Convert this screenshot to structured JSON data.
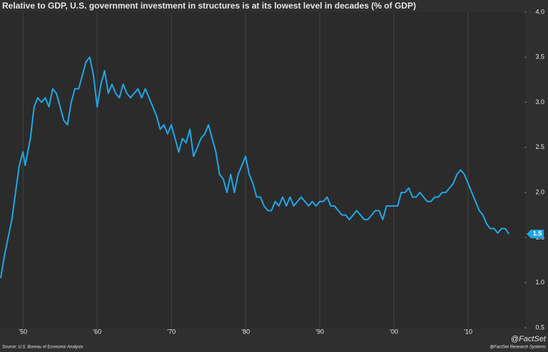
{
  "chart_data": {
    "type": "line",
    "title": "Relative to GDP, U.S. government investment in structures is at its lowest level in decades (% of GDP)",
    "source": "Source: U.S. Bureau of Economic Analysis",
    "credit": "@FactSet Research Systems",
    "logo": "@FactSet",
    "last_value_label": "1.5",
    "grid": "x",
    "xlim": [
      1947,
      2017.6
    ],
    "ylim": [
      0.5,
      4.0
    ],
    "xticks": [
      {
        "value": 1950,
        "label": "’50"
      },
      {
        "value": 1960,
        "label": "’60"
      },
      {
        "value": 1970,
        "label": "’70"
      },
      {
        "value": 1980,
        "label": "’80"
      },
      {
        "value": 1990,
        "label": "’90"
      },
      {
        "value": 2000,
        "label": "’00"
      },
      {
        "value": 2010,
        "label": "’10"
      }
    ],
    "yticks": [
      {
        "value": 4,
        "label": "4.0"
      },
      3.5,
      {
        "value": 3,
        "label": "3.0"
      },
      2.5,
      {
        "value": 2,
        "label": "2.0"
      },
      1.5,
      {
        "value": 1,
        "label": "1.0"
      },
      0.5
    ],
    "series": [
      {
        "color": "#1ea7e8",
        "x": [
          1947.0,
          1947.5,
          1948.0,
          1948.5,
          1949.0,
          1949.5,
          1950.0,
          1950.3,
          1951.0,
          1951.5,
          1952.0,
          1952.5,
          1953.0,
          1953.5,
          1954.0,
          1954.5,
          1955.0,
          1955.5,
          1956.0,
          1956.5,
          1957.0,
          1957.5,
          1958.0,
          1958.5,
          1959.0,
          1959.5,
          1960.0,
          1960.5,
          1961.0,
          1961.5,
          1962.0,
          1962.5,
          1963.0,
          1963.5,
          1964.0,
          1964.5,
          1965.0,
          1965.5,
          1966.0,
          1966.5,
          1967.0,
          1967.5,
          1968.0,
          1968.5,
          1969.0,
          1969.5,
          1970.0,
          1970.5,
          1971.0,
          1971.5,
          1972.0,
          1972.5,
          1973.0,
          1973.5,
          1974.0,
          1974.5,
          1975.0,
          1975.5,
          1976.0,
          1976.5,
          1977.0,
          1977.5,
          1978.0,
          1978.5,
          1979.0,
          1979.5,
          1980.0,
          1980.5,
          1981.0,
          1981.5,
          1982.0,
          1982.5,
          1983.0,
          1983.5,
          1984.0,
          1984.5,
          1985.0,
          1985.5,
          1986.0,
          1986.5,
          1987.0,
          1987.5,
          1988.0,
          1988.5,
          1989.0,
          1989.5,
          1990.0,
          1990.5,
          1991.0,
          1991.5,
          1992.0,
          1992.5,
          1993.0,
          1993.5,
          1994.0,
          1994.5,
          1995.0,
          1995.5,
          1996.0,
          1996.5,
          1997.0,
          1997.5,
          1998.0,
          1998.5,
          1999.0,
          1999.5,
          2000.0,
          2000.5,
          2001.0,
          2001.5,
          2002.0,
          2002.5,
          2003.0,
          2003.5,
          2004.0,
          2004.5,
          2005.0,
          2005.5,
          2006.0,
          2006.5,
          2007.0,
          2007.5,
          2008.0,
          2008.5,
          2009.0,
          2009.5,
          2010.0,
          2010.5,
          2011.0,
          2011.5,
          2012.0,
          2012.5,
          2013.0,
          2013.5,
          2014.0,
          2014.5,
          2015.0,
          2015.5
        ],
        "values": [
          1.05,
          1.3,
          1.5,
          1.7,
          2.0,
          2.3,
          2.45,
          2.3,
          2.6,
          2.95,
          3.05,
          3.0,
          3.05,
          2.95,
          3.15,
          3.1,
          2.95,
          2.8,
          2.75,
          3.0,
          3.15,
          3.15,
          3.3,
          3.45,
          3.5,
          3.3,
          2.95,
          3.2,
          3.35,
          3.1,
          3.2,
          3.1,
          3.05,
          3.2,
          3.1,
          3.05,
          3.1,
          3.15,
          3.05,
          3.15,
          3.05,
          2.95,
          2.85,
          2.7,
          2.75,
          2.65,
          2.75,
          2.6,
          2.45,
          2.6,
          2.55,
          2.7,
          2.4,
          2.5,
          2.6,
          2.65,
          2.75,
          2.6,
          2.45,
          2.2,
          2.15,
          2.0,
          2.2,
          2.0,
          2.2,
          2.3,
          2.4,
          2.2,
          2.1,
          1.95,
          1.95,
          1.85,
          1.8,
          1.8,
          1.9,
          1.85,
          1.95,
          1.85,
          1.95,
          1.85,
          1.9,
          1.95,
          1.9,
          1.85,
          1.9,
          1.85,
          1.9,
          1.9,
          1.95,
          1.85,
          1.85,
          1.8,
          1.75,
          1.75,
          1.7,
          1.75,
          1.8,
          1.75,
          1.7,
          1.7,
          1.75,
          1.8,
          1.8,
          1.7,
          1.85,
          1.85,
          1.85,
          1.85,
          2.0,
          2.0,
          2.05,
          1.95,
          1.95,
          2.0,
          1.95,
          1.9,
          1.9,
          1.95,
          1.95,
          2.0,
          2.0,
          2.05,
          2.1,
          2.2,
          2.25,
          2.2,
          2.1,
          2.0,
          1.9,
          1.8,
          1.75,
          1.65,
          1.6,
          1.6,
          1.55,
          1.6,
          1.6,
          1.54
        ]
      }
    ]
  }
}
